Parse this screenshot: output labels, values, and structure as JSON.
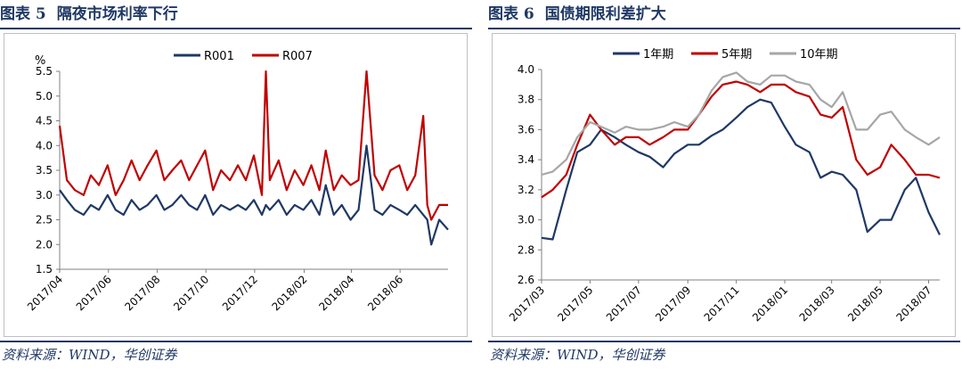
{
  "left": {
    "fig_no": "图表 5",
    "title": "隔夜市场利率下行",
    "source": "资料来源：WIND，华创证券"
  },
  "right": {
    "fig_no": "图表 6",
    "title": "国债期限利差扩大",
    "source": "资料来源：WIND，华创证券"
  },
  "chart_data": [
    {
      "type": "line",
      "ylabel": "%",
      "ylim": [
        1.5,
        5.5
      ],
      "yticks": [
        "1.5",
        "2.0",
        "2.5",
        "3.0",
        "3.5",
        "4.0",
        "4.5",
        "5.0",
        "5.5"
      ],
      "xticks": [
        "2017/04",
        "2017/06",
        "2017/08",
        "2017/10",
        "2017/12",
        "2018/02",
        "2018/04",
        "2018/06"
      ],
      "legend_position": "top",
      "grid": false,
      "x": [
        "2017/04/01",
        "2017/04/10",
        "2017/04/20",
        "2017/05/01",
        "2017/05/10",
        "2017/05/20",
        "2017/05/31",
        "2017/06/10",
        "2017/06/20",
        "2017/06/30",
        "2017/07/10",
        "2017/07/20",
        "2017/07/31",
        "2017/08/10",
        "2017/08/20",
        "2017/08/31",
        "2017/09/10",
        "2017/09/20",
        "2017/09/30",
        "2017/10/10",
        "2017/10/20",
        "2017/10/31",
        "2017/11/10",
        "2017/11/20",
        "2017/11/30",
        "2017/12/10",
        "2017/12/15",
        "2017/12/20",
        "2017/12/31",
        "2018/01/10",
        "2018/01/20",
        "2018/01/31",
        "2018/02/10",
        "2018/02/20",
        "2018/02/28",
        "2018/03/10",
        "2018/03/20",
        "2018/03/31",
        "2018/04/10",
        "2018/04/20",
        "2018/04/30",
        "2018/05/10",
        "2018/05/20",
        "2018/05/31",
        "2018/06/10",
        "2018/06/20",
        "2018/06/30",
        "2018/07/05",
        "2018/07/10",
        "2018/07/20",
        "2018/07/31"
      ],
      "series": [
        {
          "name": "R001",
          "color": "#1f3864",
          "values": [
            3.1,
            2.9,
            2.7,
            2.6,
            2.8,
            2.7,
            3.0,
            2.7,
            2.6,
            2.9,
            2.7,
            2.8,
            3.0,
            2.7,
            2.8,
            3.0,
            2.8,
            2.7,
            3.0,
            2.6,
            2.8,
            2.7,
            2.8,
            2.7,
            2.9,
            2.6,
            2.8,
            2.7,
            2.9,
            2.6,
            2.8,
            2.7,
            2.9,
            2.6,
            3.2,
            2.6,
            2.8,
            2.5,
            2.7,
            4.0,
            2.7,
            2.6,
            2.8,
            2.7,
            2.6,
            2.8,
            2.6,
            2.5,
            2.0,
            2.5,
            2.3
          ]
        },
        {
          "name": "R007",
          "color": "#c00000",
          "values": [
            4.4,
            3.3,
            3.1,
            3.0,
            3.4,
            3.2,
            3.6,
            3.0,
            3.3,
            3.7,
            3.3,
            3.6,
            3.9,
            3.3,
            3.5,
            3.7,
            3.3,
            3.6,
            3.9,
            3.1,
            3.5,
            3.3,
            3.6,
            3.3,
            3.8,
            3.0,
            5.5,
            3.3,
            3.7,
            3.1,
            3.5,
            3.2,
            3.6,
            3.1,
            3.9,
            3.1,
            3.4,
            3.2,
            3.3,
            5.5,
            3.4,
            3.1,
            3.5,
            3.6,
            3.1,
            3.4,
            4.6,
            2.8,
            2.5,
            2.8,
            2.8
          ]
        }
      ]
    },
    {
      "type": "line",
      "ylim": [
        2.6,
        4.0
      ],
      "yticks": [
        "2.6",
        "2.8",
        "3.0",
        "3.2",
        "3.4",
        "3.6",
        "3.8",
        "4.0"
      ],
      "xticks": [
        "2017/03",
        "2017/05",
        "2017/07",
        "2017/09",
        "2017/11",
        "2018/01",
        "2018/03",
        "2018/05",
        "2018/07"
      ],
      "legend_position": "top",
      "grid": false,
      "x": [
        "2017/03/01",
        "2017/03/15",
        "2017/04/01",
        "2017/04/15",
        "2017/05/01",
        "2017/05/15",
        "2017/06/01",
        "2017/06/15",
        "2017/07/01",
        "2017/07/15",
        "2017/08/01",
        "2017/08/15",
        "2017/09/01",
        "2017/09/15",
        "2017/10/01",
        "2017/10/15",
        "2017/11/01",
        "2017/11/15",
        "2017/12/01",
        "2017/12/15",
        "2018/01/01",
        "2018/01/15",
        "2018/02/01",
        "2018/02/15",
        "2018/03/01",
        "2018/03/15",
        "2018/04/01",
        "2018/04/15",
        "2018/05/01",
        "2018/05/15",
        "2018/06/01",
        "2018/06/15",
        "2018/07/01",
        "2018/07/15"
      ],
      "series": [
        {
          "name": "1年期",
          "color": "#1f3864",
          "values": [
            2.88,
            2.87,
            3.2,
            3.45,
            3.5,
            3.6,
            3.55,
            3.5,
            3.45,
            3.42,
            3.35,
            3.44,
            3.5,
            3.5,
            3.56,
            3.6,
            3.68,
            3.75,
            3.8,
            3.78,
            3.62,
            3.5,
            3.45,
            3.28,
            3.32,
            3.3,
            3.2,
            2.92,
            3.0,
            3.0,
            3.2,
            3.28,
            3.05,
            2.9
          ]
        },
        {
          "name": "5年期",
          "color": "#c00000",
          "values": [
            3.15,
            3.2,
            3.3,
            3.5,
            3.7,
            3.6,
            3.5,
            3.55,
            3.55,
            3.5,
            3.55,
            3.6,
            3.6,
            3.7,
            3.82,
            3.9,
            3.92,
            3.9,
            3.85,
            3.9,
            3.9,
            3.85,
            3.82,
            3.7,
            3.68,
            3.75,
            3.4,
            3.3,
            3.35,
            3.5,
            3.4,
            3.3,
            3.3,
            3.28
          ]
        },
        {
          "name": "10年期",
          "color": "#a6a6a6",
          "values": [
            3.3,
            3.32,
            3.4,
            3.55,
            3.65,
            3.62,
            3.58,
            3.62,
            3.6,
            3.6,
            3.62,
            3.65,
            3.62,
            3.7,
            3.86,
            3.95,
            3.98,
            3.92,
            3.9,
            3.96,
            3.96,
            3.92,
            3.9,
            3.8,
            3.75,
            3.85,
            3.6,
            3.6,
            3.7,
            3.72,
            3.6,
            3.55,
            3.5,
            3.55
          ]
        }
      ]
    }
  ]
}
